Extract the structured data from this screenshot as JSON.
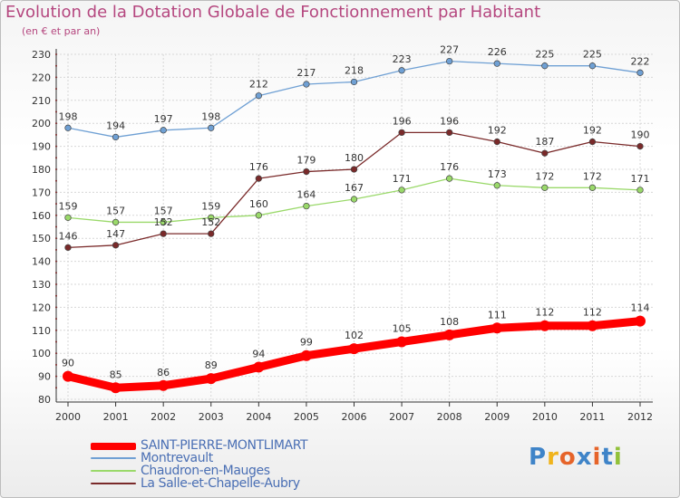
{
  "header": {
    "title": "Evolution de la Dotation Globale de Fonctionnement par Habitant",
    "subtitle": "(en € et par an)"
  },
  "logo": {
    "text": "Proxiti",
    "colors": [
      "#3f84c8",
      "#f0b41c",
      "#e6642a",
      "#3f84c8",
      "#e6642a",
      "#3f84c8",
      "#92c13a"
    ]
  },
  "chart_data": {
    "type": "line",
    "x": [
      "2000",
      "2001",
      "2002",
      "2003",
      "2004",
      "2005",
      "2006",
      "2007",
      "2008",
      "2009",
      "2010",
      "2011",
      "2012"
    ],
    "ylim": [
      80,
      230
    ],
    "yticks": [
      80,
      90,
      100,
      110,
      120,
      130,
      140,
      150,
      160,
      170,
      180,
      190,
      200,
      210,
      220,
      230
    ],
    "grid": true,
    "legend_position": "bottom-left",
    "series": [
      {
        "name": "SAINT-PIERRE-MONTLIMART",
        "color": "#ff0000",
        "values": [
          90,
          85,
          86,
          89,
          94,
          99,
          102,
          105,
          108,
          111,
          112,
          112,
          114
        ],
        "labels": [
          "90",
          "85",
          "86",
          "89",
          "94",
          "99",
          "102",
          "105",
          "108",
          "111",
          "112",
          "112",
          "114"
        ]
      },
      {
        "name": "Montrevault",
        "color": "#6fa0d4",
        "values": [
          198,
          194,
          197,
          198,
          212,
          217,
          218,
          223,
          227,
          226,
          225,
          225,
          222
        ],
        "labels": [
          "198",
          "194",
          "197",
          "198",
          "212",
          "217",
          "218",
          "223",
          "227",
          "226",
          "225",
          "225",
          "222"
        ]
      },
      {
        "name": "Chaudron-en-Mauges",
        "color": "#9ad96a",
        "values": [
          159,
          157,
          157,
          159,
          160,
          164,
          167,
          171,
          176,
          173,
          172,
          172,
          171
        ],
        "labels": [
          "159",
          "157",
          "157",
          "159",
          "160",
          "164",
          "167",
          "171",
          "176",
          "173",
          "172",
          "172",
          "171"
        ]
      },
      {
        "name": "La Salle-et-Chapelle-Aubry",
        "color": "#7a2a2a",
        "values": [
          146,
          147,
          152,
          152,
          176,
          179,
          180,
          196,
          196,
          192,
          187,
          192,
          190
        ],
        "labels": [
          "146",
          "147",
          "152",
          "152",
          "176",
          "179",
          "180",
          "196",
          "196",
          "192",
          "187",
          "192",
          "190"
        ]
      }
    ]
  }
}
